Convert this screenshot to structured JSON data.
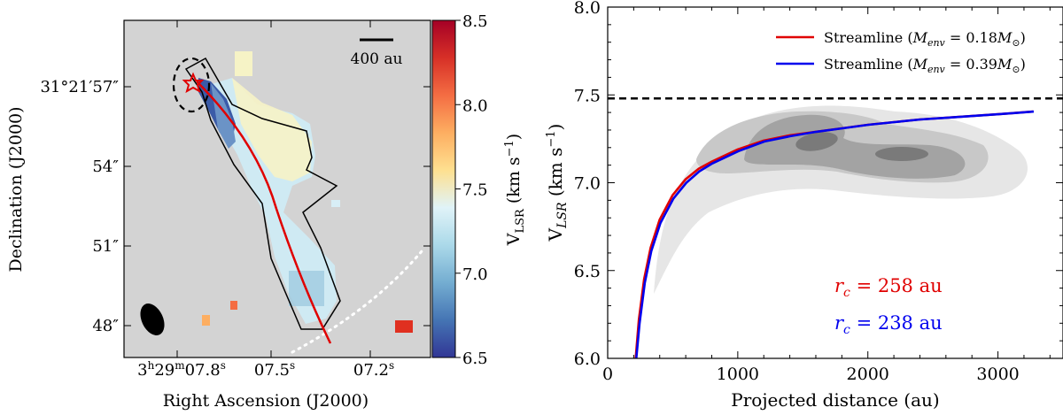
{
  "chart_data": [
    {
      "type": "heatmap",
      "panel": "left",
      "title": "",
      "xlabel": "Right Ascension (J2000)",
      "ylabel": "Declination (J2000)",
      "x_ticks": [
        {
          "label_main": "3",
          "sup1": "h",
          "mid": "29",
          "sup2": "m",
          "tail": "07.8",
          "sup3": "s"
        },
        {
          "label_main": "07.5",
          "sup3": "s"
        },
        {
          "label_main": "07.2",
          "sup3": "s"
        }
      ],
      "y_ticks": [
        "31°21′57″",
        "54″",
        "51″",
        "48″"
      ],
      "colorbar": {
        "label": "V",
        "label_sub": "LSR",
        "label_units": "(km s",
        "label_units_sup": "−1",
        "label_close": ")",
        "range": [
          6.5,
          8.5
        ],
        "ticks": [
          "8.5",
          "8.0",
          "7.5",
          "7.0",
          "6.5"
        ],
        "colors": [
          "#313695",
          "#4575b4",
          "#74add1",
          "#abd9e9",
          "#e0f3f8",
          "#fee090",
          "#fdae61",
          "#f46d43",
          "#d73027",
          "#a50026"
        ]
      },
      "scale_bar_label": "400 au",
      "annotations": {
        "streamline_color": "#e00000",
        "protostar_marker": "star",
        "beam": "ellipse",
        "envelope_contour": "dashed-ellipse",
        "boundary": "dotted-arc"
      }
    },
    {
      "type": "line",
      "panel": "right",
      "title": "",
      "xlabel": "Projected distance (au)",
      "ylabel": "V",
      "ylabel_sub": "LSR",
      "ylabel_units": "(km s",
      "ylabel_units_sup": "−1",
      "ylabel_close": ")",
      "xlim": [
        0,
        3500
      ],
      "ylim": [
        6.0,
        8.0
      ],
      "x_ticks": [
        0,
        1000,
        2000,
        3000
      ],
      "x_tick_labels": [
        "0",
        "1000",
        "2000",
        "3000"
      ],
      "y_ticks": [
        6.0,
        6.5,
        7.0,
        7.5,
        8.0
      ],
      "y_tick_labels": [
        "6.0",
        "6.5",
        "7.0",
        "7.5",
        "8.0"
      ],
      "hline": {
        "y": 7.48,
        "style": "dashed",
        "color": "#000000"
      },
      "series": [
        {
          "name": "Streamline (M_env = 0.18M_sun)",
          "label_text": "Streamline (",
          "label_var": "M",
          "label_sub": "env",
          "label_eq": " = 0.18",
          "label_M": "M",
          "label_sun": "⊙",
          "label_close": ")",
          "color": "#e00000",
          "x": [
            215,
            240,
            280,
            330,
            400,
            500,
            600,
            700,
            800,
            1000,
            1200,
            1400,
            1600,
            1800,
            2000,
            2200,
            2400,
            2600,
            2800,
            3000,
            3270
          ],
          "y": [
            6.0,
            6.22,
            6.45,
            6.63,
            6.79,
            6.93,
            7.02,
            7.08,
            7.12,
            7.19,
            7.24,
            7.27,
            7.29,
            7.31,
            7.33,
            7.345,
            7.36,
            7.37,
            7.38,
            7.39,
            7.405
          ]
        },
        {
          "name": "Streamline (M_env = 0.39M_sun)",
          "label_text": "Streamline (",
          "label_var": "M",
          "label_sub": "env",
          "label_eq": " = 0.39",
          "label_M": "M",
          "label_sun": "⊙",
          "label_close": ")",
          "color": "#0000ee",
          "x": [
            220,
            245,
            285,
            335,
            405,
            505,
            605,
            705,
            805,
            1005,
            1205,
            1405,
            1605,
            1805,
            2005,
            2205,
            2405,
            2605,
            2805,
            3005,
            3275
          ],
          "y": [
            6.0,
            6.2,
            6.43,
            6.61,
            6.77,
            6.91,
            7.0,
            7.065,
            7.11,
            7.18,
            7.235,
            7.265,
            7.29,
            7.31,
            7.33,
            7.345,
            7.36,
            7.37,
            7.38,
            7.39,
            7.405
          ]
        }
      ],
      "density_contours": {
        "levels": 4,
        "colors": [
          "#e6e6e6",
          "#c8c8c8",
          "#a3a3a3",
          "#7a7a7a"
        ]
      },
      "text_annotations": [
        {
          "var": "r",
          "sub": "c",
          "text": " = 258 au",
          "color": "#e00000"
        },
        {
          "var": "r",
          "sub": "c",
          "text": " = 238 au",
          "color": "#0000ee"
        }
      ]
    }
  ]
}
